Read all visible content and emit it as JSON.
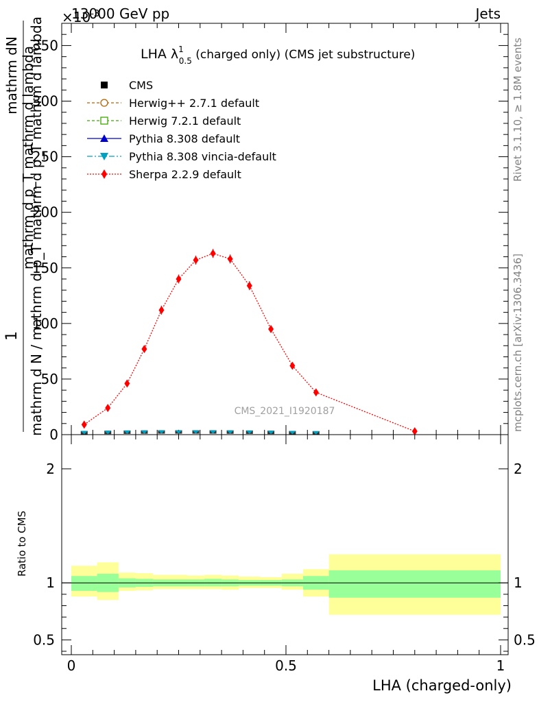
{
  "header": {
    "energy_label": "13000 GeV pp",
    "process_label": "Jets",
    "exponent_label": "×10",
    "exponent_power": "-3"
  },
  "side": {
    "rivet": "Rivet 3.1.10, ≥ 1.8M events",
    "mcplots": "mcplots.cern.ch [arXiv:1306.3436]"
  },
  "chart_data": [
    {
      "type": "line",
      "title_main": "LHA λ",
      "title_sup": "1",
      "title_sub": "0.5",
      "title_rest": " (charged only) (CMS jet substructure)",
      "ylabel_numerator": "1",
      "ylabel_fraction_num": "mathrm dN",
      "ylabel_denominator": "mathrm d N / mathrm d p_T mathrm d p_T mathrm d lambda",
      "watermark": "CMS_2021_I1920187",
      "xlim": [
        0,
        1
      ],
      "ylim": [
        0,
        370
      ],
      "y_ticks": [
        0,
        50,
        100,
        150,
        200,
        250,
        300,
        350
      ],
      "x": [
        0.03,
        0.085,
        0.13,
        0.17,
        0.21,
        0.25,
        0.29,
        0.33,
        0.37,
        0.415,
        0.465,
        0.515,
        0.57,
        0.8
      ],
      "legend": [
        {
          "name": "CMS",
          "style": "cms"
        },
        {
          "name": "Herwig++ 2.7.1 default",
          "style": "herwigpp"
        },
        {
          "name": "Herwig 7.2.1 default",
          "style": "herwig7"
        },
        {
          "name": "Pythia 8.308 default",
          "style": "pythia"
        },
        {
          "name": "Pythia 8.308 vincia-default",
          "style": "vincia"
        },
        {
          "name": "Sherpa 2.2.9 default",
          "style": "sherpa"
        }
      ],
      "series": [
        {
          "name": "Sherpa 2.2.9 default",
          "color": "#ff0000",
          "values": [
            9,
            24,
            46,
            77,
            112,
            140,
            157,
            163,
            158,
            134,
            95,
            62,
            38,
            3
          ],
          "errors": [
            3,
            3,
            3,
            3,
            4,
            4,
            4,
            4,
            4,
            4,
            3,
            3,
            2,
            1
          ]
        },
        {
          "name": "CMS",
          "color": "#000000",
          "values": [
            0.9,
            1.1,
            1.3,
            1.4,
            1.5,
            1.5,
            1.5,
            1.5,
            1.4,
            1.3,
            1.1,
            0.9,
            0.7,
            0.4
          ]
        },
        {
          "name": "Pythia 8.308 vincia-default",
          "color": "#00a0c0",
          "values": [
            0.9,
            1.1,
            1.3,
            1.4,
            1.5,
            1.5,
            1.5,
            1.5,
            1.4,
            1.3,
            1.1,
            0.9,
            0.7,
            0.4
          ]
        }
      ],
      "colors": {
        "herwigpp": "#b36200",
        "herwig7": "#3da800",
        "pythia": "#0000cc",
        "vincia": "#00a0c0",
        "sherpa": "#ff0000"
      }
    },
    {
      "type": "area",
      "ylabel": "Ratio to CMS",
      "xlabel": "LHA (charged-only)",
      "xlim": [
        0,
        1
      ],
      "ylim": [
        0.37,
        2.3
      ],
      "y_ticks": [
        0.5,
        1,
        2
      ],
      "y_tick_labels": [
        "0.5",
        "1",
        "2"
      ],
      "x_ticks": [
        0,
        0.5,
        1
      ],
      "x_tick_labels": [
        "0",
        "0.5",
        "1"
      ],
      "bins": [
        {
          "lo": 0.0,
          "hi": 0.06,
          "inner": [
            0.93,
            1.06
          ],
          "outer": [
            0.88,
            1.15
          ]
        },
        {
          "lo": 0.06,
          "hi": 0.11,
          "inner": [
            0.92,
            1.08
          ],
          "outer": [
            0.85,
            1.18
          ]
        },
        {
          "lo": 0.11,
          "hi": 0.15,
          "inner": [
            0.96,
            1.04
          ],
          "outer": [
            0.93,
            1.09
          ]
        },
        {
          "lo": 0.15,
          "hi": 0.19,
          "inner": [
            0.965,
            1.035
          ],
          "outer": [
            0.935,
            1.085
          ]
        },
        {
          "lo": 0.19,
          "hi": 0.23,
          "inner": [
            0.97,
            1.03
          ],
          "outer": [
            0.945,
            1.07
          ]
        },
        {
          "lo": 0.23,
          "hi": 0.27,
          "inner": [
            0.97,
            1.03
          ],
          "outer": [
            0.945,
            1.07
          ]
        },
        {
          "lo": 0.27,
          "hi": 0.31,
          "inner": [
            0.97,
            1.03
          ],
          "outer": [
            0.945,
            1.065
          ]
        },
        {
          "lo": 0.31,
          "hi": 0.35,
          "inner": [
            0.97,
            1.035
          ],
          "outer": [
            0.945,
            1.07
          ]
        },
        {
          "lo": 0.35,
          "hi": 0.39,
          "inner": [
            0.97,
            1.03
          ],
          "outer": [
            0.94,
            1.065
          ]
        },
        {
          "lo": 0.39,
          "hi": 0.44,
          "inner": [
            0.975,
            1.025
          ],
          "outer": [
            0.955,
            1.055
          ]
        },
        {
          "lo": 0.44,
          "hi": 0.49,
          "inner": [
            0.975,
            1.025
          ],
          "outer": [
            0.955,
            1.05
          ]
        },
        {
          "lo": 0.49,
          "hi": 0.54,
          "inner": [
            0.97,
            1.03
          ],
          "outer": [
            0.94,
            1.08
          ]
        },
        {
          "lo": 0.54,
          "hi": 0.6,
          "inner": [
            0.94,
            1.06
          ],
          "outer": [
            0.88,
            1.12
          ]
        },
        {
          "lo": 0.6,
          "hi": 1.0,
          "inner": [
            0.87,
            1.11
          ],
          "outer": [
            0.72,
            1.25
          ]
        }
      ],
      "band_colors": {
        "inner": "#99ff99",
        "outer": "#ffff99"
      }
    }
  ]
}
